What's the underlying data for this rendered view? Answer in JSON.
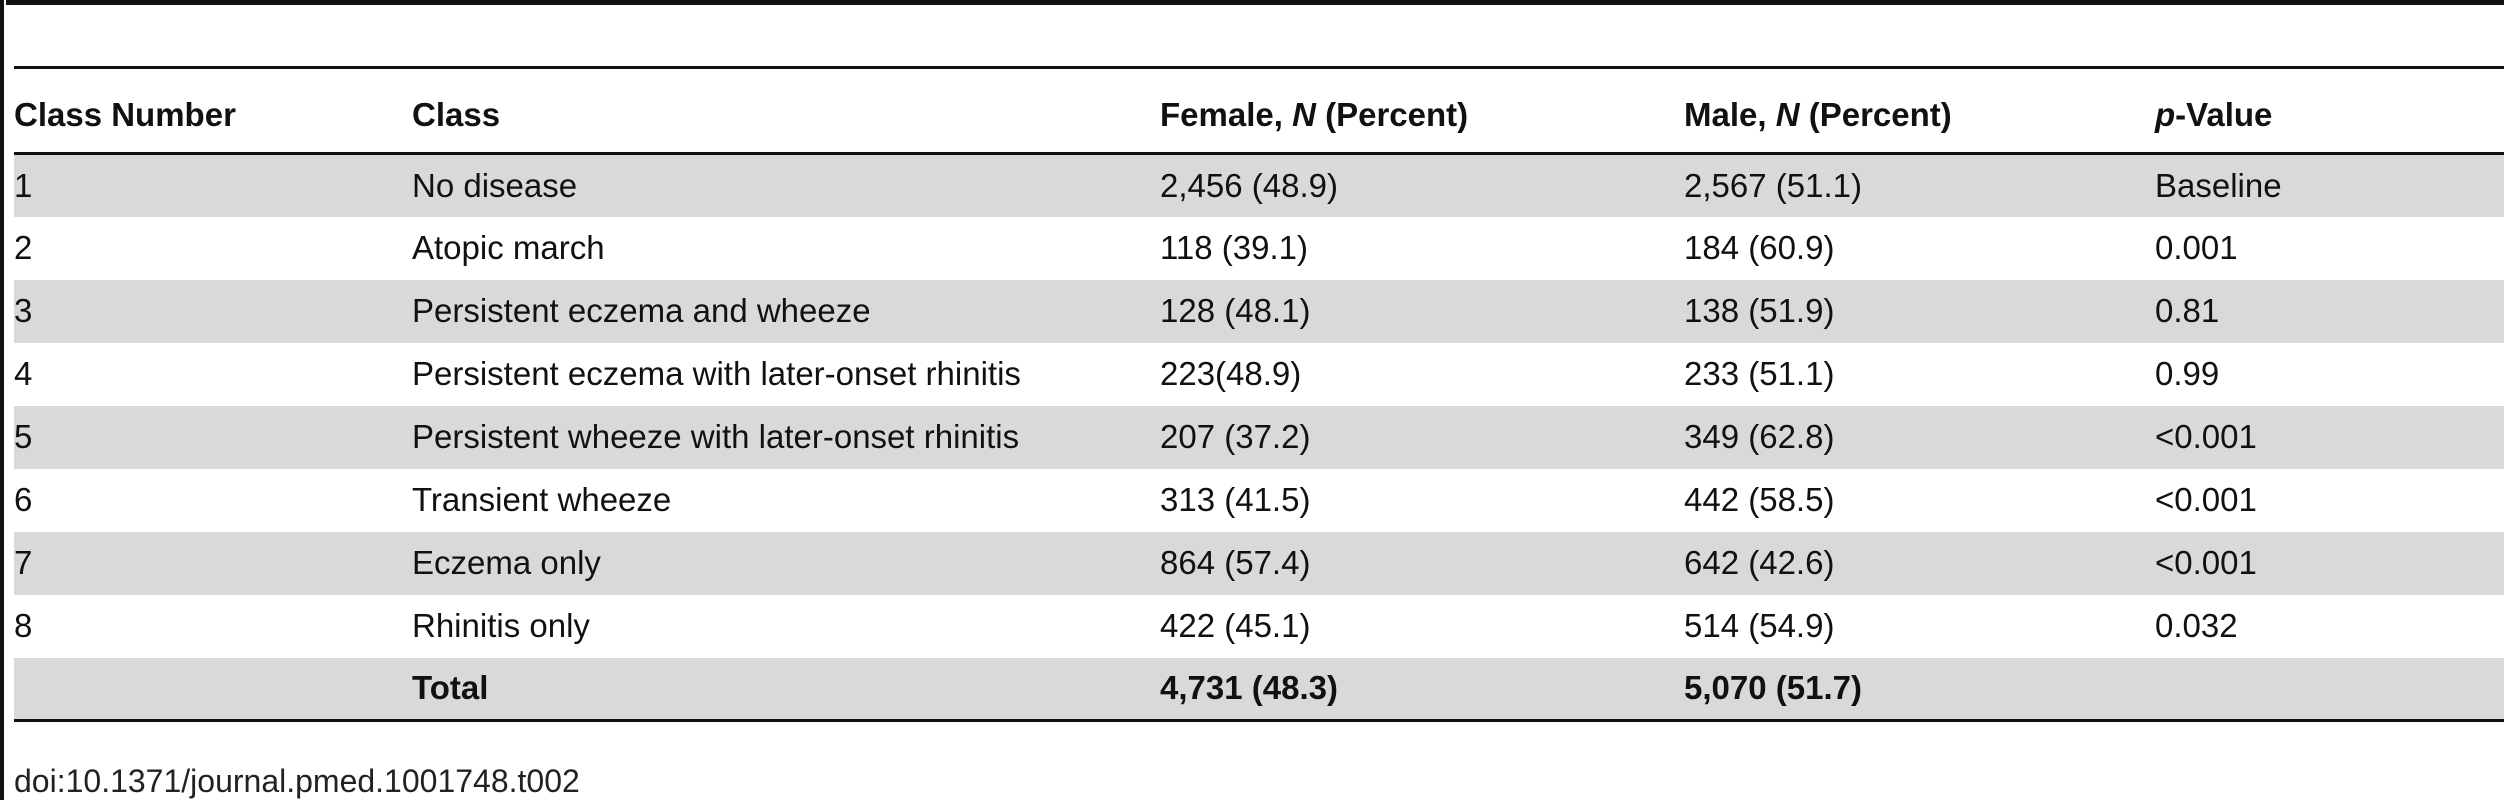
{
  "table": {
    "headers": {
      "class_number": "Class Number",
      "class": "Class",
      "female_prefix": "Female, ",
      "female_n": "N",
      "female_suffix": " (Percent)",
      "male_prefix": "Male, ",
      "male_n": "N",
      "male_suffix": " (Percent)",
      "p_italic": "p",
      "p_suffix": "-Value"
    },
    "rows": [
      {
        "num": "1",
        "class": "No disease",
        "female": "2,456 (48.9)",
        "male": "2,567 (51.1)",
        "p": "Baseline"
      },
      {
        "num": "2",
        "class": "Atopic march",
        "female": "118 (39.1)",
        "male": "184 (60.9)",
        "p": "0.001"
      },
      {
        "num": "3",
        "class": "Persistent eczema and wheeze",
        "female": "128 (48.1)",
        "male": "138 (51.9)",
        "p": "0.81"
      },
      {
        "num": "4",
        "class": "Persistent eczema with later-onset rhinitis",
        "female": "223(48.9)",
        "male": "233 (51.1)",
        "p": "0.99"
      },
      {
        "num": "5",
        "class": "Persistent wheeze with later-onset rhinitis",
        "female": "207 (37.2)",
        "male": "349 (62.8)",
        "p": "<0.001"
      },
      {
        "num": "6",
        "class": "Transient wheeze",
        "female": "313 (41.5)",
        "male": "442 (58.5)",
        "p": "<0.001"
      },
      {
        "num": "7",
        "class": "Eczema only",
        "female": "864 (57.4)",
        "male": "642 (42.6)",
        "p": "<0.001"
      },
      {
        "num": "8",
        "class": "Rhinitis only",
        "female": "422 (45.1)",
        "male": "514 (54.9)",
        "p": "0.032"
      }
    ],
    "total": {
      "label": "Total",
      "female": "4,731 (48.3)",
      "male": "5,070 (51.7)"
    }
  },
  "doi": "doi:10.1371/journal.pmed.1001748.t002"
}
